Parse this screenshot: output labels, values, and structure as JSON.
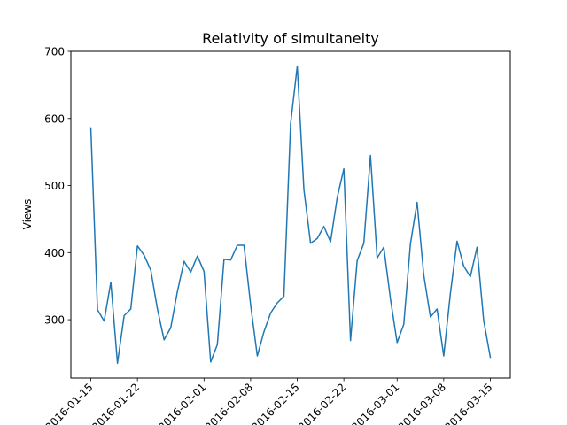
{
  "chart_data": {
    "type": "line",
    "title": "Relativity of simultaneity",
    "xlabel": "",
    "ylabel": "Views",
    "x_tick_labels": [
      "2016-01-15",
      "2016-01-22",
      "2016-02-01",
      "2016-02-08",
      "2016-02-15",
      "2016-02-22",
      "2016-03-01",
      "2016-03-08",
      "2016-03-15"
    ],
    "y_ticks": [
      300,
      400,
      500,
      600,
      700
    ],
    "ylim": [
      213,
      700
    ],
    "xlim": [
      "2016-01-12",
      "2016-03-18"
    ],
    "grid": false,
    "line_color": "#1f77b4",
    "series": [
      {
        "x": [
          "2016-01-15",
          "2016-01-16",
          "2016-01-17",
          "2016-01-18",
          "2016-01-19",
          "2016-01-20",
          "2016-01-21",
          "2016-01-22",
          "2016-01-23",
          "2016-01-24",
          "2016-01-25",
          "2016-01-26",
          "2016-01-27",
          "2016-01-28",
          "2016-01-29",
          "2016-01-30",
          "2016-01-31",
          "2016-02-01",
          "2016-02-02",
          "2016-02-03",
          "2016-02-04",
          "2016-02-05",
          "2016-02-06",
          "2016-02-07",
          "2016-02-08",
          "2016-02-09",
          "2016-02-10",
          "2016-02-11",
          "2016-02-12",
          "2016-02-13",
          "2016-02-14",
          "2016-02-15",
          "2016-02-16",
          "2016-02-17",
          "2016-02-18",
          "2016-02-19",
          "2016-02-20",
          "2016-02-21",
          "2016-02-22",
          "2016-02-23",
          "2016-02-24",
          "2016-02-25",
          "2016-02-26",
          "2016-02-27",
          "2016-02-28",
          "2016-02-29",
          "2016-03-01",
          "2016-03-02",
          "2016-03-03",
          "2016-03-04",
          "2016-03-05",
          "2016-03-06",
          "2016-03-07",
          "2016-03-08",
          "2016-03-09",
          "2016-03-10",
          "2016-03-11",
          "2016-03-12",
          "2016-03-13",
          "2016-03-14",
          "2016-03-15"
        ],
        "values": [
          586,
          315,
          298,
          356,
          235,
          306,
          316,
          410,
          396,
          374,
          316,
          270,
          288,
          342,
          387,
          371,
          395,
          372,
          237,
          263,
          390,
          389,
          411,
          411,
          322,
          246,
          282,
          310,
          325,
          335,
          592,
          678,
          494,
          414,
          421,
          439,
          416,
          482,
          525,
          269,
          388,
          414,
          545,
          392,
          408,
          331,
          266,
          293,
          413,
          475,
          367,
          304,
          316,
          246,
          339,
          417,
          380,
          364,
          408,
          299,
          244
        ]
      }
    ]
  }
}
